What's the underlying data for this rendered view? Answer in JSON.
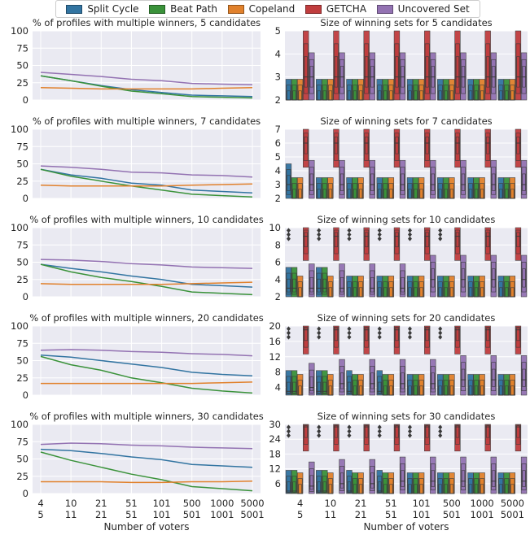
{
  "legend": {
    "items": [
      {
        "name": "Split Cycle",
        "color": "#3274a1"
      },
      {
        "name": "Beat Path",
        "color": "#3a923a"
      },
      {
        "name": "Copeland",
        "color": "#e1812c"
      },
      {
        "name": "GETCHA",
        "color": "#c03d3e"
      },
      {
        "name": "Uncovered Set",
        "color": "#9372b2"
      }
    ]
  },
  "xaxis": {
    "label": "Number of voters",
    "ticks": [
      {
        "top": "4",
        "bottom": "5"
      },
      {
        "top": "10",
        "bottom": "11"
      },
      {
        "top": "21",
        "bottom": "21"
      },
      {
        "top": "51",
        "bottom": "51"
      },
      {
        "top": "101",
        "bottom": "101"
      },
      {
        "top": "500",
        "bottom": "501"
      },
      {
        "top": "1000",
        "bottom": "1001"
      },
      {
        "top": "5000",
        "bottom": "5001"
      }
    ]
  },
  "chart_data": [
    {
      "type": "line",
      "title": "% of profiles with multiple winners, 5 candidates",
      "ylim": [
        0,
        100
      ],
      "yticks": [
        0,
        25,
        50,
        75,
        100
      ],
      "series": [
        {
          "name": "Split Cycle",
          "values": [
            35,
            28,
            21,
            15,
            11,
            7,
            6,
            5
          ]
        },
        {
          "name": "Beat Path",
          "values": [
            35,
            28,
            20,
            13,
            9,
            5,
            4,
            3
          ]
        },
        {
          "name": "Copeland",
          "values": [
            18,
            17,
            16,
            16,
            16,
            16,
            17,
            18
          ]
        },
        {
          "name": "Uncovered Set",
          "values": [
            40,
            37,
            34,
            30,
            28,
            24,
            23,
            22
          ]
        }
      ]
    },
    {
      "type": "boxen",
      "title": "Size of winning sets for 5 candidates",
      "ylim": [
        2,
        5
      ],
      "yticks": [
        2,
        3,
        4,
        5
      ],
      "medians": [
        [
          2,
          2,
          2,
          3,
          3
        ],
        [
          2,
          2,
          2,
          3,
          3
        ],
        [
          2,
          2,
          2,
          3,
          3
        ],
        [
          2,
          2,
          2,
          3,
          3
        ],
        [
          2,
          2,
          2,
          3,
          3
        ],
        [
          2,
          2,
          2,
          3,
          3
        ],
        [
          2,
          2,
          2,
          3,
          3
        ],
        [
          2,
          2,
          2,
          3,
          3
        ]
      ]
    },
    {
      "type": "line",
      "title": "% of profiles with multiple winners, 7 candidates",
      "ylim": [
        0,
        100
      ],
      "yticks": [
        0,
        25,
        50,
        75,
        100
      ],
      "series": [
        {
          "name": "Split Cycle",
          "values": [
            42,
            34,
            29,
            22,
            19,
            12,
            10,
            8
          ]
        },
        {
          "name": "Beat Path",
          "values": [
            42,
            32,
            25,
            18,
            12,
            6,
            4,
            2
          ]
        },
        {
          "name": "Copeland",
          "values": [
            19,
            18,
            18,
            18,
            18,
            19,
            20,
            21
          ]
        },
        {
          "name": "Uncovered Set",
          "values": [
            47,
            45,
            42,
            38,
            37,
            34,
            33,
            31
          ]
        }
      ]
    },
    {
      "type": "boxen",
      "title": "Size of winning sets for 7 candidates",
      "ylim": [
        2,
        7
      ],
      "yticks": [
        2,
        3,
        4,
        5,
        6,
        7
      ],
      "medians": [
        [
          3,
          2,
          2,
          6,
          3
        ],
        [
          2,
          2,
          2,
          6,
          3
        ],
        [
          2,
          2,
          2,
          6,
          3
        ],
        [
          2,
          2,
          2,
          6,
          3
        ],
        [
          2,
          2,
          2,
          6,
          3
        ],
        [
          2,
          2,
          2,
          6,
          3
        ],
        [
          2,
          2,
          2,
          6,
          3
        ],
        [
          2,
          2,
          2,
          6,
          3
        ]
      ]
    },
    {
      "type": "line",
      "title": "% of profiles with multiple winners, 10 candidates",
      "ylim": [
        0,
        100
      ],
      "yticks": [
        0,
        25,
        50,
        75,
        100
      ],
      "series": [
        {
          "name": "Split Cycle",
          "values": [
            47,
            41,
            36,
            30,
            25,
            18,
            16,
            14
          ]
        },
        {
          "name": "Beat Path",
          "values": [
            47,
            36,
            28,
            22,
            15,
            7,
            5,
            3
          ]
        },
        {
          "name": "Copeland",
          "values": [
            19,
            18,
            18,
            18,
            18,
            19,
            20,
            21
          ]
        },
        {
          "name": "Uncovered Set",
          "values": [
            54,
            53,
            51,
            48,
            46,
            43,
            42,
            41
          ]
        }
      ]
    },
    {
      "type": "boxen",
      "title": "Size of winning sets for 10 candidates",
      "ylim": [
        2,
        10
      ],
      "yticks": [
        2,
        4,
        6,
        8,
        10
      ],
      "medians": [
        [
          3,
          3,
          2,
          9,
          3
        ],
        [
          3,
          3,
          2,
          9,
          3
        ],
        [
          2,
          2,
          2,
          9,
          3
        ],
        [
          2,
          2,
          2,
          9,
          3
        ],
        [
          2,
          2,
          2,
          9,
          4
        ],
        [
          2,
          2,
          2,
          9,
          4
        ],
        [
          2,
          2,
          2,
          9,
          4
        ],
        [
          2,
          2,
          2,
          9,
          4
        ]
      ]
    },
    {
      "type": "line",
      "title": "% of profiles with multiple winners, 20 candidates",
      "ylim": [
        0,
        100
      ],
      "yticks": [
        0,
        25,
        50,
        75,
        100
      ],
      "series": [
        {
          "name": "Split Cycle",
          "values": [
            58,
            55,
            50,
            45,
            40,
            33,
            30,
            28
          ]
        },
        {
          "name": "Beat Path",
          "values": [
            56,
            44,
            36,
            25,
            18,
            10,
            6,
            3
          ]
        },
        {
          "name": "Copeland",
          "values": [
            17,
            17,
            17,
            17,
            17,
            17,
            18,
            19
          ]
        },
        {
          "name": "Uncovered Set",
          "values": [
            65,
            66,
            65,
            63,
            62,
            60,
            59,
            57
          ]
        }
      ]
    },
    {
      "type": "boxen",
      "title": "Size of winning sets for 20 candidates",
      "ylim": [
        2,
        20
      ],
      "yticks": [
        4,
        8,
        12,
        16,
        20
      ],
      "medians": [
        [
          3,
          3,
          2,
          19,
          4
        ],
        [
          3,
          3,
          2,
          19,
          5
        ],
        [
          3,
          2,
          2,
          19,
          5
        ],
        [
          3,
          2,
          2,
          19,
          5
        ],
        [
          2,
          2,
          2,
          19,
          5
        ],
        [
          2,
          2,
          2,
          19,
          6
        ],
        [
          2,
          2,
          2,
          19,
          6
        ],
        [
          2,
          2,
          2,
          19,
          6
        ]
      ]
    },
    {
      "type": "line",
      "title": "% of profiles with multiple winners, 30 candidates",
      "ylim": [
        0,
        100
      ],
      "yticks": [
        0,
        25,
        50,
        75,
        100
      ],
      "series": [
        {
          "name": "Split Cycle",
          "values": [
            64,
            62,
            58,
            53,
            49,
            42,
            40,
            38
          ]
        },
        {
          "name": "Beat Path",
          "values": [
            60,
            48,
            38,
            28,
            20,
            10,
            7,
            4
          ]
        },
        {
          "name": "Copeland",
          "values": [
            17,
            17,
            17,
            16,
            16,
            17,
            17,
            18
          ]
        },
        {
          "name": "Uncovered Set",
          "values": [
            71,
            73,
            72,
            70,
            69,
            67,
            66,
            65
          ]
        }
      ]
    },
    {
      "type": "boxen",
      "title": "Size of winning sets for 30 candidates",
      "ylim": [
        2,
        30
      ],
      "yticks": [
        6,
        12,
        18,
        24,
        30
      ],
      "medians": [
        [
          3,
          3,
          2,
          29,
          5
        ],
        [
          3,
          3,
          2,
          29,
          6
        ],
        [
          3,
          2,
          2,
          29,
          6
        ],
        [
          3,
          2,
          2,
          29,
          7
        ],
        [
          2,
          2,
          2,
          29,
          7
        ],
        [
          2,
          2,
          2,
          29,
          7
        ],
        [
          2,
          2,
          2,
          29,
          7
        ],
        [
          2,
          2,
          2,
          29,
          7
        ]
      ]
    }
  ]
}
